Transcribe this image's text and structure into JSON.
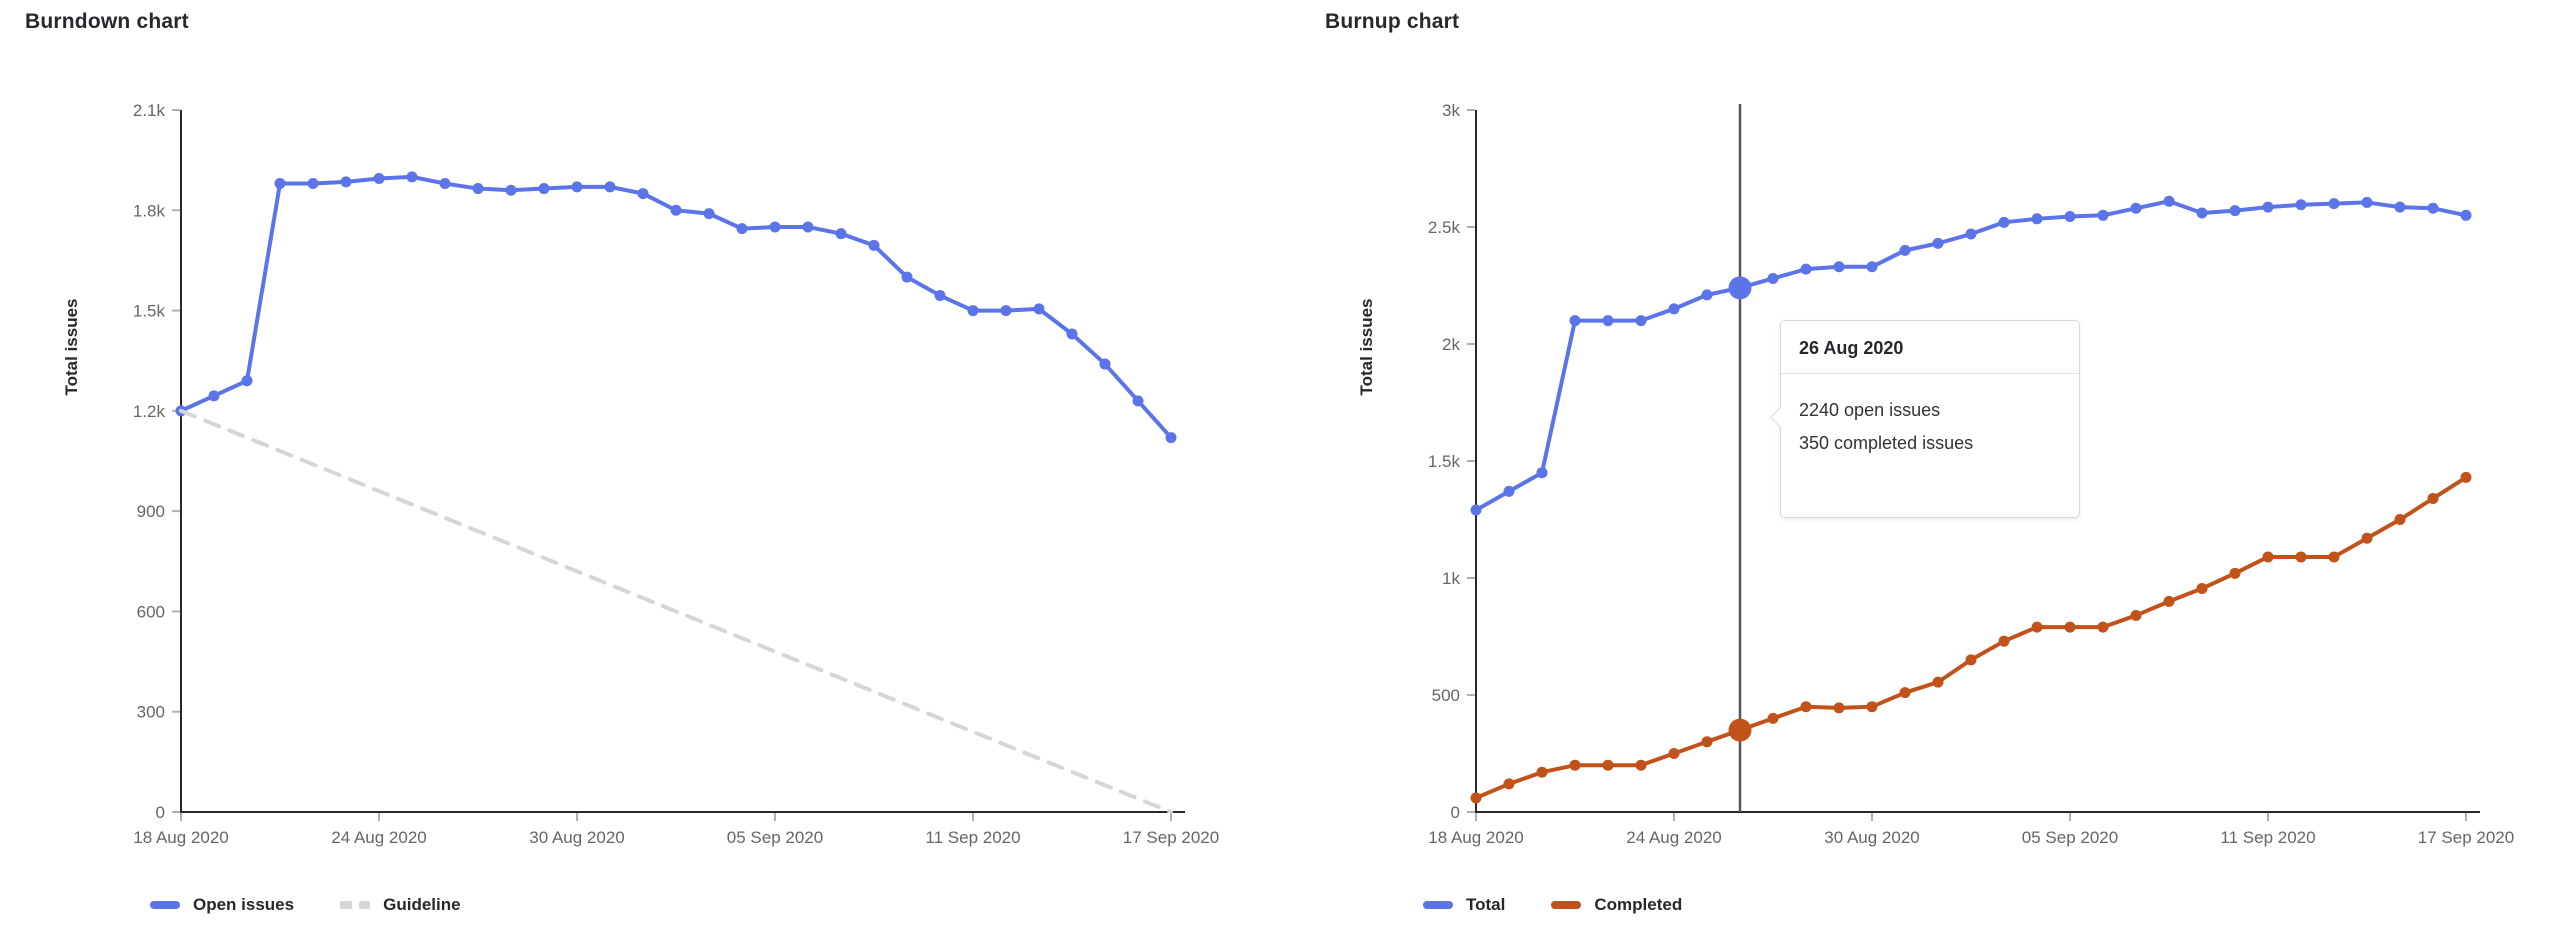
{
  "colors": {
    "series_blue": "#5b74e8",
    "series_orange": "#c0521a",
    "guideline_gray": "#d6d6d6",
    "crosshair_gray": "#54545c",
    "axis_line": "#28272d",
    "tick_mark": "#b0b0b0",
    "tick_label": "#666666"
  },
  "chart_data": [
    {
      "type": "line",
      "title": "Burndown chart",
      "ylabel": "Total issues",
      "ylim": [
        0,
        2100
      ],
      "grid": false,
      "legend_position": "bottom-left",
      "x_dates": [
        "18 Aug 2020",
        "19 Aug 2020",
        "20 Aug 2020",
        "21 Aug 2020",
        "22 Aug 2020",
        "23 Aug 2020",
        "24 Aug 2020",
        "25 Aug 2020",
        "26 Aug 2020",
        "27 Aug 2020",
        "28 Aug 2020",
        "29 Aug 2020",
        "30 Aug 2020",
        "31 Aug 2020",
        "01 Sep 2020",
        "02 Sep 2020",
        "03 Sep 2020",
        "04 Sep 2020",
        "05 Sep 2020",
        "06 Sep 2020",
        "07 Sep 2020",
        "08 Sep 2020",
        "09 Sep 2020",
        "10 Sep 2020",
        "11 Sep 2020",
        "12 Sep 2020",
        "13 Sep 2020",
        "14 Sep 2020",
        "15 Sep 2020",
        "16 Sep 2020",
        "17 Sep 2020"
      ],
      "xticks": [
        {
          "label": "18 Aug 2020",
          "index": 0
        },
        {
          "label": "24 Aug 2020",
          "index": 6
        },
        {
          "label": "30 Aug 2020",
          "index": 12
        },
        {
          "label": "05 Sep 2020",
          "index": 18
        },
        {
          "label": "11 Sep 2020",
          "index": 24
        },
        {
          "label": "17 Sep 2020",
          "index": 30
        }
      ],
      "yticks": [
        {
          "label": "2.1k",
          "value": 2100
        },
        {
          "label": "1.8k",
          "value": 1800
        },
        {
          "label": "1.5k",
          "value": 1500
        },
        {
          "label": "1.2k",
          "value": 1200
        },
        {
          "label": "900",
          "value": 900
        },
        {
          "label": "600",
          "value": 600
        },
        {
          "label": "300",
          "value": 300
        },
        {
          "label": "0",
          "value": 0
        }
      ],
      "series": [
        {
          "name": "Open issues",
          "style": "solid",
          "color": "#5b74e8",
          "points": true,
          "values": [
            1200,
            1245,
            1290,
            1880,
            1880,
            1885,
            1895,
            1900,
            1880,
            1865,
            1860,
            1865,
            1870,
            1870,
            1850,
            1800,
            1790,
            1745,
            1750,
            1750,
            1730,
            1695,
            1600,
            1545,
            1500,
            1500,
            1505,
            1430,
            1340,
            1230,
            1120
          ]
        },
        {
          "name": "Guideline",
          "style": "dashed",
          "color": "#d6d6d6",
          "points": false,
          "values": [
            1200,
            1160,
            1120,
            1080,
            1040,
            1000,
            960,
            920,
            880,
            840,
            800,
            760,
            720,
            680,
            640,
            600,
            560,
            520,
            480,
            440,
            400,
            360,
            320,
            280,
            240,
            200,
            160,
            120,
            80,
            40,
            0
          ]
        }
      ]
    },
    {
      "type": "line",
      "title": "Burnup chart",
      "ylabel": "Total issues",
      "ylim": [
        0,
        3000
      ],
      "grid": false,
      "legend_position": "bottom-left",
      "x_dates": [
        "18 Aug 2020",
        "19 Aug 2020",
        "20 Aug 2020",
        "21 Aug 2020",
        "22 Aug 2020",
        "23 Aug 2020",
        "24 Aug 2020",
        "25 Aug 2020",
        "26 Aug 2020",
        "27 Aug 2020",
        "28 Aug 2020",
        "29 Aug 2020",
        "30 Aug 2020",
        "31 Aug 2020",
        "01 Sep 2020",
        "02 Sep 2020",
        "03 Sep 2020",
        "04 Sep 2020",
        "05 Sep 2020",
        "06 Sep 2020",
        "07 Sep 2020",
        "08 Sep 2020",
        "09 Sep 2020",
        "10 Sep 2020",
        "11 Sep 2020",
        "12 Sep 2020",
        "13 Sep 2020",
        "14 Sep 2020",
        "15 Sep 2020",
        "16 Sep 2020",
        "17 Sep 2020"
      ],
      "xticks": [
        {
          "label": "18 Aug 2020",
          "index": 0
        },
        {
          "label": "24 Aug 2020",
          "index": 6
        },
        {
          "label": "30 Aug 2020",
          "index": 12
        },
        {
          "label": "05 Sep 2020",
          "index": 18
        },
        {
          "label": "11 Sep 2020",
          "index": 24
        },
        {
          "label": "17 Sep 2020",
          "index": 30
        }
      ],
      "yticks": [
        {
          "label": "3k",
          "value": 3000
        },
        {
          "label": "2.5k",
          "value": 2500
        },
        {
          "label": "2k",
          "value": 2000
        },
        {
          "label": "1.5k",
          "value": 1500
        },
        {
          "label": "1k",
          "value": 1000
        },
        {
          "label": "500",
          "value": 500
        },
        {
          "label": "0",
          "value": 0
        }
      ],
      "series": [
        {
          "name": "Total",
          "style": "solid",
          "color": "#5b74e8",
          "points": true,
          "values": [
            1290,
            1370,
            1450,
            2100,
            2100,
            2100,
            2150,
            2210,
            2240,
            2280,
            2320,
            2330,
            2330,
            2400,
            2430,
            2470,
            2520,
            2535,
            2545,
            2550,
            2580,
            2610,
            2560,
            2570,
            2585,
            2595,
            2600,
            2605,
            2585,
            2580,
            2550
          ]
        },
        {
          "name": "Completed",
          "style": "solid",
          "color": "#c0521a",
          "points": true,
          "values": [
            60,
            120,
            170,
            200,
            200,
            200,
            250,
            300,
            350,
            400,
            450,
            445,
            450,
            510,
            555,
            650,
            730,
            790,
            790,
            790,
            840,
            900,
            955,
            1020,
            1090,
            1090,
            1090,
            1170,
            1250,
            1340,
            1430
          ]
        }
      ],
      "highlight_index": 8,
      "tooltip": {
        "title": "26 Aug 2020",
        "open_line": "2240 open issues",
        "completed_line": "350 completed issues"
      }
    }
  ]
}
